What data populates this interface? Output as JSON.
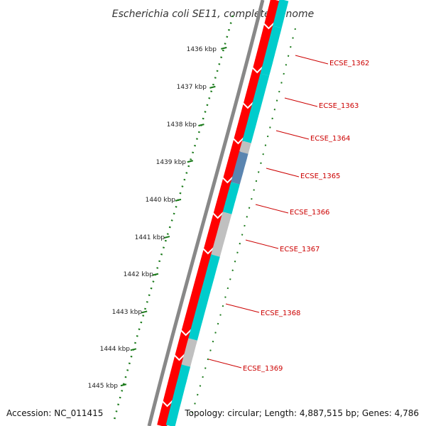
{
  "title": "Escherichia coli SE11, complete genome",
  "accession": "Accession: NC_011415",
  "summary": "Topology: circular; Length: 4,887,515 bp; Genes: 4,786",
  "colors": {
    "backbone": "#888888",
    "forward_gene": "#ff0000",
    "cds_cyan": "#00cccc",
    "cds_gray": "#c0c0c0",
    "cds_blue": "#5b85b0",
    "tick": "#1a7a1a",
    "gene_label": "#cc0000"
  },
  "ticks": [
    "1436 kbp",
    "1437 kbp",
    "1438 kbp",
    "1439 kbp",
    "1440 kbp",
    "1441 kbp",
    "1442 kbp",
    "1443 kbp",
    "1444 kbp",
    "1445 kbp"
  ],
  "gene_labels": [
    "ECSE_1362",
    "ECSE_1363",
    "ECSE_1364",
    "ECSE_1365",
    "ECSE_1366",
    "ECSE_1367",
    "ECSE_1368",
    "ECSE_1369"
  ],
  "cds_segments": [
    {
      "color": "cyan"
    },
    {
      "color": "cyan"
    },
    {
      "color": "cyan"
    },
    {
      "color": "gray"
    },
    {
      "color": "blue"
    },
    {
      "color": "cyan"
    },
    {
      "color": "gray"
    },
    {
      "color": "cyan"
    },
    {
      "color": "gray"
    },
    {
      "color": "cyan"
    }
  ]
}
